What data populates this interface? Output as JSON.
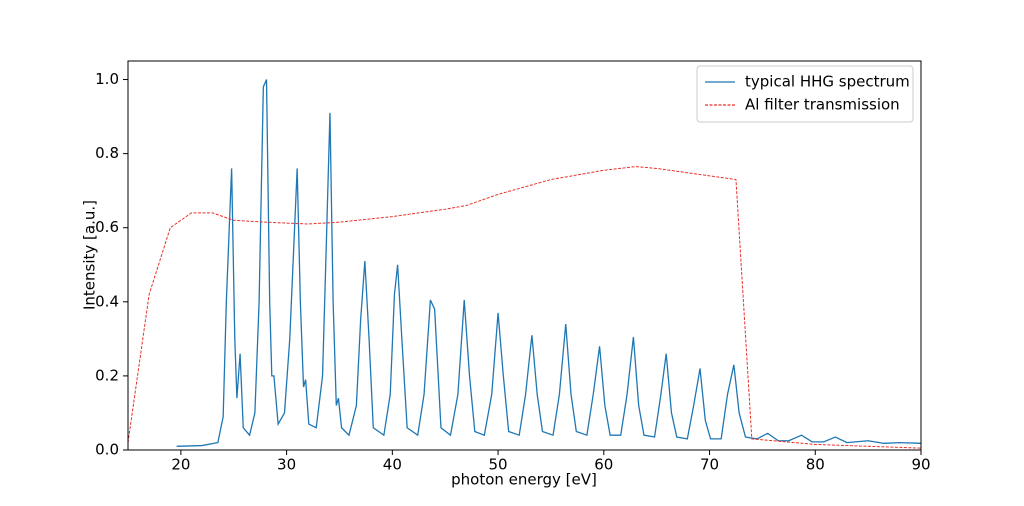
{
  "chart_data": {
    "type": "line",
    "xlabel": "photon energy [eV]",
    "ylabel": "Intensity [a.u.]",
    "xlim": [
      15,
      90
    ],
    "ylim": [
      0,
      1.05
    ],
    "xticks": [
      20,
      30,
      40,
      50,
      60,
      70,
      80,
      90
    ],
    "yticks": [
      {
        "value": 0,
        "label": "0.0"
      },
      0.2,
      0.4,
      0.6,
      0.8,
      {
        "value": 1,
        "label": "1.0"
      }
    ],
    "legend": "upper right",
    "series": [
      {
        "name": "typical HHG spectrum",
        "color": "#1f77b4",
        "dash": "solid",
        "x": [
          19.6,
          22,
          23.5,
          24.0,
          24.3,
          24.8,
          25.1,
          25.3,
          25.6,
          25.9,
          26.5,
          27.0,
          27.4,
          27.8,
          28.1,
          28.4,
          28.6,
          28.8,
          29.2,
          29.8,
          30.3,
          31.0,
          31.3,
          31.6,
          31.8,
          32.1,
          32.8,
          33.4,
          33.8,
          34.1,
          34.4,
          34.7,
          34.9,
          35.2,
          35.9,
          36.6,
          37.0,
          37.4,
          37.8,
          38.2,
          39.2,
          39.8,
          40.2,
          40.5,
          40.9,
          41.4,
          42.4,
          43.0,
          43.6,
          44.0,
          44.6,
          45.5,
          46.2,
          46.8,
          47.3,
          47.8,
          48.7,
          49.4,
          50.0,
          50.5,
          51.0,
          52.0,
          52.6,
          53.2,
          53.7,
          54.2,
          55.2,
          55.8,
          56.4,
          56.9,
          57.4,
          58.4,
          59.0,
          59.6,
          60.1,
          60.6,
          61.6,
          62.2,
          62.8,
          63.3,
          63.8,
          64.8,
          65.4,
          65.9,
          66.4,
          66.9,
          67.9,
          68.5,
          69.1,
          69.6,
          70.1,
          71.1,
          71.7,
          72.3,
          72.8,
          73.4,
          74.5,
          75.5,
          76.5,
          77.5,
          78.7,
          79.7,
          80.8,
          81.9,
          83,
          85,
          86.5,
          88,
          90
        ],
        "values": [
          0.01,
          0.012,
          0.02,
          0.09,
          0.4,
          0.76,
          0.3,
          0.14,
          0.26,
          0.06,
          0.04,
          0.1,
          0.4,
          0.98,
          1.0,
          0.4,
          0.2,
          0.2,
          0.07,
          0.1,
          0.3,
          0.76,
          0.4,
          0.17,
          0.19,
          0.07,
          0.06,
          0.2,
          0.6,
          0.91,
          0.4,
          0.12,
          0.14,
          0.06,
          0.04,
          0.12,
          0.35,
          0.51,
          0.3,
          0.06,
          0.04,
          0.15,
          0.42,
          0.5,
          0.3,
          0.06,
          0.04,
          0.15,
          0.405,
          0.38,
          0.06,
          0.04,
          0.15,
          0.405,
          0.2,
          0.05,
          0.04,
          0.15,
          0.37,
          0.2,
          0.05,
          0.04,
          0.15,
          0.31,
          0.15,
          0.05,
          0.04,
          0.15,
          0.34,
          0.15,
          0.05,
          0.04,
          0.15,
          0.28,
          0.12,
          0.04,
          0.04,
          0.15,
          0.305,
          0.12,
          0.04,
          0.035,
          0.15,
          0.26,
          0.1,
          0.035,
          0.03,
          0.12,
          0.22,
          0.08,
          0.03,
          0.03,
          0.15,
          0.23,
          0.1,
          0.035,
          0.03,
          0.045,
          0.025,
          0.025,
          0.04,
          0.022,
          0.022,
          0.035,
          0.02,
          0.025,
          0.018,
          0.02,
          0.018
        ]
      },
      {
        "name": "Al filter transmission",
        "color": "#e8322b",
        "dash": "dashed",
        "x": [
          15,
          17,
          19,
          20,
          21,
          23,
          25,
          28,
          32,
          35,
          40,
          45,
          47,
          50,
          55,
          60,
          63,
          65,
          72.5,
          74,
          80,
          90
        ],
        "values": [
          0.02,
          0.42,
          0.6,
          0.62,
          0.64,
          0.64,
          0.62,
          0.615,
          0.61,
          0.615,
          0.63,
          0.65,
          0.66,
          0.69,
          0.73,
          0.755,
          0.765,
          0.76,
          0.73,
          0.03,
          0.015,
          0.005
        ]
      }
    ]
  }
}
